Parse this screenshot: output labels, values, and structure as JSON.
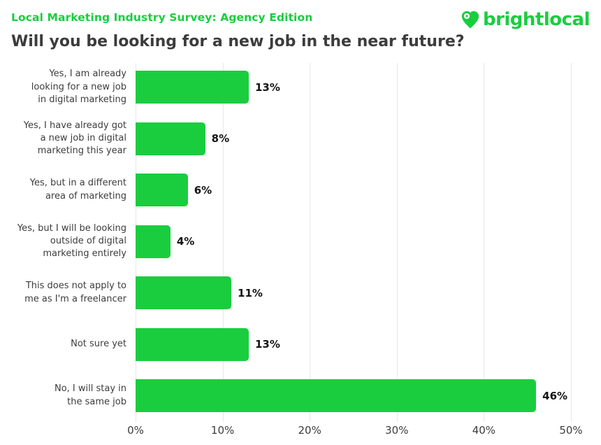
{
  "header": {
    "eyebrow": "Local Marketing Industry Survey: Agency Edition",
    "title": "Will you be looking for a new job in the near future?",
    "logo_text": "brightlocal"
  },
  "colors": {
    "brand_green": "#1ACD3F",
    "title_dark": "#3C3C3C",
    "gridline": "#E7E7E7",
    "value_text": "#141414"
  },
  "chart_data": {
    "type": "bar",
    "orientation": "horizontal",
    "title": "Will you be looking for a new job in the near future?",
    "categories": [
      "Yes, I am already\nlooking for a new job\nin digital marketing",
      "Yes, I have already got\na new job in digital\nmarketing this year",
      "Yes, but in a different\narea of marketing",
      "Yes, but I will be looking\noutside of digital\nmarketing entirely",
      "This does not apply to\nme as I'm a freelancer",
      "Not sure yet",
      "No, I will stay in\nthe same job"
    ],
    "values": [
      13,
      8,
      6,
      4,
      11,
      13,
      46
    ],
    "value_labels": [
      "13%",
      "8%",
      "6%",
      "4%",
      "11%",
      "13%",
      "46%"
    ],
    "xlabel": "",
    "ylabel": "",
    "xlim": [
      0,
      50
    ],
    "x_ticks": [
      "0%",
      "10%",
      "20%",
      "30%",
      "40%",
      "50%"
    ],
    "grid": "vertical",
    "legend": "none",
    "bar_color": "#1ACD3F"
  }
}
